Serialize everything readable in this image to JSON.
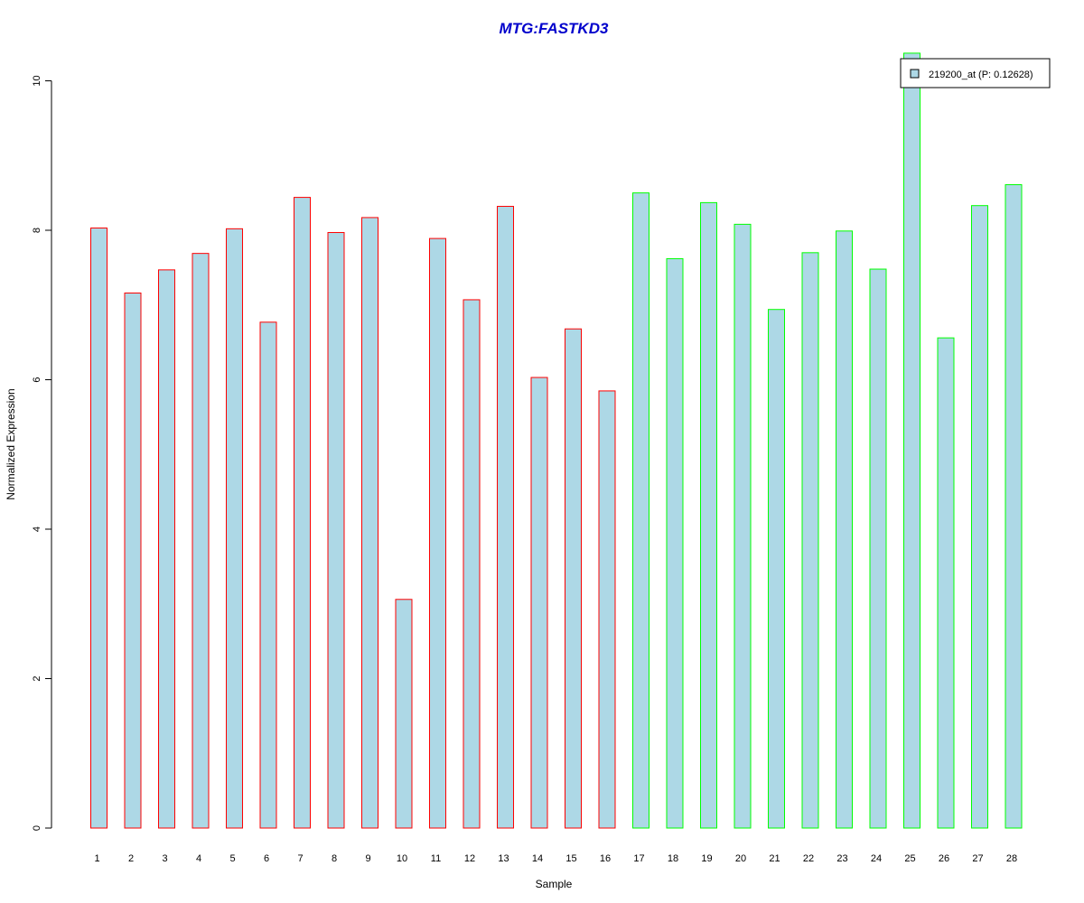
{
  "chart_data": {
    "type": "bar",
    "title": "MTG:FASTKD3",
    "xlabel": "Sample",
    "ylabel": "Normalized Expression",
    "categories": [
      "1",
      "2",
      "3",
      "4",
      "5",
      "6",
      "7",
      "8",
      "9",
      "10",
      "11",
      "12",
      "13",
      "14",
      "15",
      "16",
      "17",
      "18",
      "19",
      "20",
      "21",
      "22",
      "23",
      "24",
      "25",
      "26",
      "27",
      "28"
    ],
    "series": [
      {
        "name": "219200_at (P: 0.12628)",
        "values": [
          8.03,
          7.16,
          7.47,
          7.69,
          8.02,
          6.77,
          8.44,
          7.97,
          8.17,
          3.06,
          7.89,
          7.07,
          8.32,
          6.03,
          6.68,
          5.85,
          8.5,
          7.62,
          8.37,
          8.08,
          6.94,
          7.7,
          7.99,
          7.48,
          10.37,
          6.56,
          8.33,
          8.61
        ],
        "fill": "#add8e6"
      }
    ],
    "group_border_colors": [
      "#ff0000",
      "#ff0000",
      "#ff0000",
      "#ff0000",
      "#ff0000",
      "#ff0000",
      "#ff0000",
      "#ff0000",
      "#ff0000",
      "#ff0000",
      "#ff0000",
      "#ff0000",
      "#ff0000",
      "#ff0000",
      "#ff0000",
      "#ff0000",
      "#00ff00",
      "#00ff00",
      "#00ff00",
      "#00ff00",
      "#00ff00",
      "#00ff00",
      "#00ff00",
      "#00ff00",
      "#00ff00",
      "#00ff00",
      "#00ff00",
      "#00ff00"
    ],
    "yticks": [
      "0",
      "2",
      "4",
      "6",
      "8",
      "10"
    ],
    "ylim": [
      0,
      10.37
    ],
    "grid": false,
    "legend_position": "top-right",
    "title_color": "#0000cc"
  }
}
